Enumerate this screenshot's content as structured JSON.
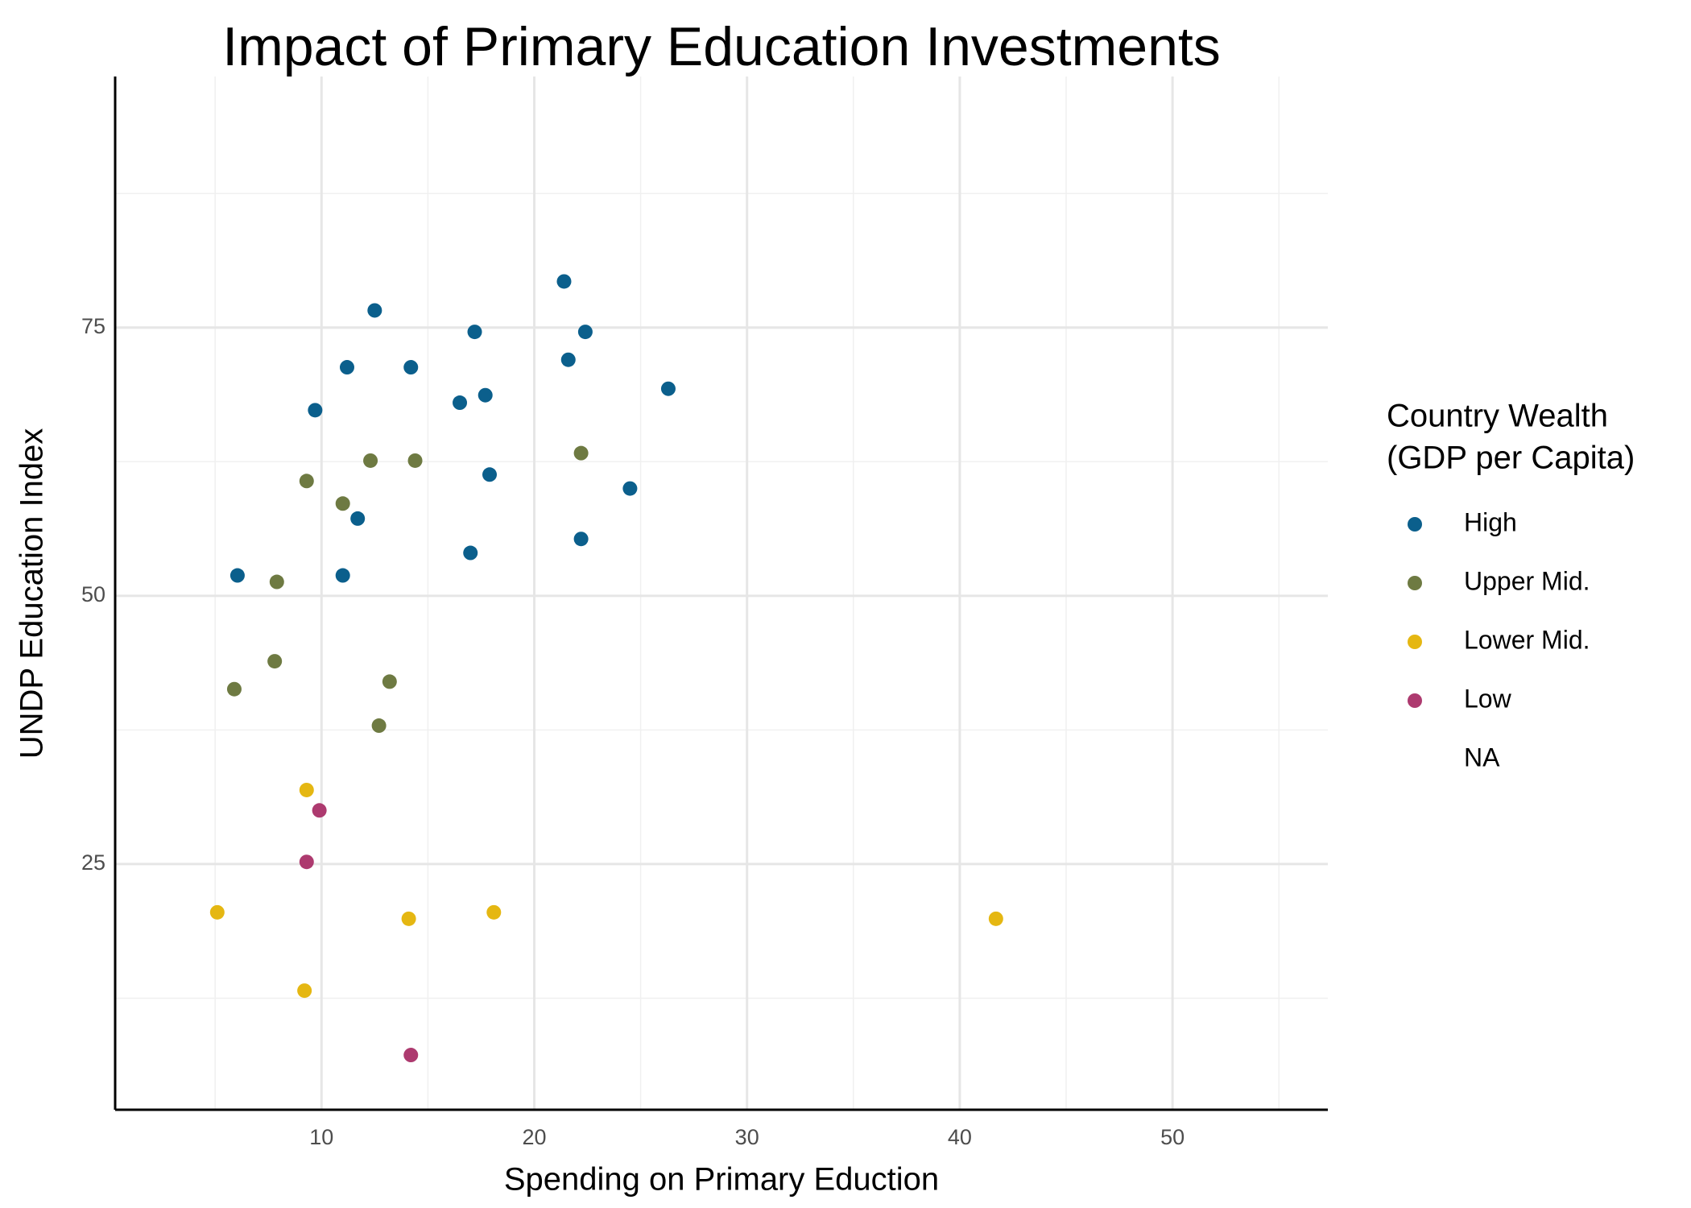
{
  "chart_data": {
    "type": "scatter",
    "title": "Impact of Primary Education Investments",
    "x_label": "Spending on Primary Eduction",
    "y_label": "UNDP Education Index",
    "legend_title": [
      "Country Wealth",
      "(GDP per Capita)"
    ],
    "xlim": [
      0.3,
      57.3
    ],
    "ylim": [
      2.1,
      98.4
    ],
    "xticks": [
      10,
      20,
      30,
      40,
      50
    ],
    "yticks": [
      25,
      50,
      75
    ],
    "xminor": [
      5,
      15,
      25,
      35,
      45,
      55
    ],
    "yminor": [
      12.5,
      37.5,
      62.5,
      87.5
    ],
    "grid": true,
    "legend": "right",
    "series": [
      {
        "name": "High",
        "color": "#0b5f8c",
        "x": [
          6.05,
          9.7,
          11.2,
          12.5,
          11.7,
          11.0,
          14.2,
          17.2,
          16.5,
          17.7,
          17.9,
          17.0,
          21.4,
          22.4,
          21.6,
          22.2,
          24.5,
          26.3
        ],
        "y": [
          51.9,
          67.3,
          71.3,
          76.6,
          57.2,
          51.9,
          71.3,
          74.6,
          68.0,
          68.7,
          61.3,
          54.0,
          79.3,
          74.6,
          72.0,
          55.3,
          60.0,
          69.3
        ]
      },
      {
        "name": "Upper Mid.",
        "color": "#6e7a42",
        "x": [
          9.3,
          11.0,
          12.3,
          14.4,
          22.2,
          7.9,
          7.8,
          5.9,
          13.2,
          12.7
        ],
        "y": [
          60.7,
          58.6,
          62.6,
          62.6,
          63.3,
          51.3,
          43.9,
          41.3,
          42.0,
          37.9
        ]
      },
      {
        "name": "Lower Mid.",
        "color": "#e5b712",
        "x": [
          9.3,
          5.1,
          14.1,
          18.1,
          9.2,
          41.7
        ],
        "y": [
          31.9,
          20.5,
          19.9,
          20.5,
          13.2,
          19.9
        ]
      },
      {
        "name": "Low",
        "color": "#ad3a6f",
        "x": [
          9.9,
          9.3,
          14.2
        ],
        "y": [
          30.0,
          25.2,
          7.2
        ]
      },
      {
        "name": "NA",
        "color": null,
        "x": [],
        "y": []
      }
    ]
  }
}
